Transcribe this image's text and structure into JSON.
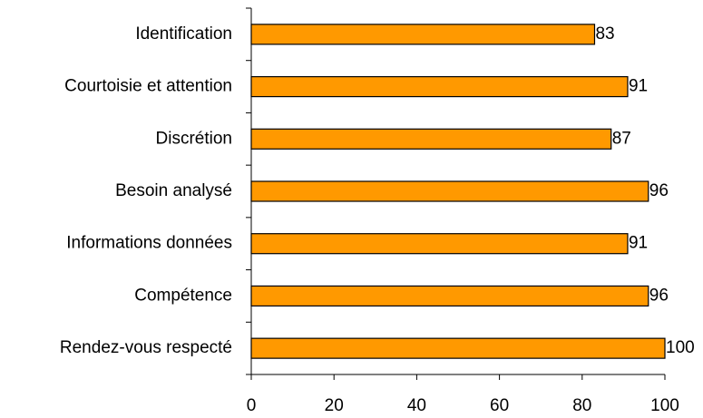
{
  "chart_data": {
    "type": "bar",
    "orientation": "horizontal",
    "categories": [
      "Identification",
      "Courtoisie et attention",
      "Discrétion",
      "Besoin analysé",
      "Informations données",
      "Compétence",
      "Rendez-vous respecté"
    ],
    "values": [
      83,
      91,
      87,
      96,
      91,
      96,
      100
    ],
    "value_labels": [
      "83",
      "91",
      "87",
      "96",
      "91",
      "96",
      "100"
    ],
    "xlim": [
      0,
      100
    ],
    "xticks": [
      0,
      20,
      40,
      60,
      80,
      100
    ],
    "xtick_labels": [
      "0",
      "20",
      "40",
      "60",
      "80",
      "100"
    ],
    "grid": false,
    "legend": "none",
    "bar_color": "#FF9900",
    "bar_edge_color": "#000000"
  }
}
